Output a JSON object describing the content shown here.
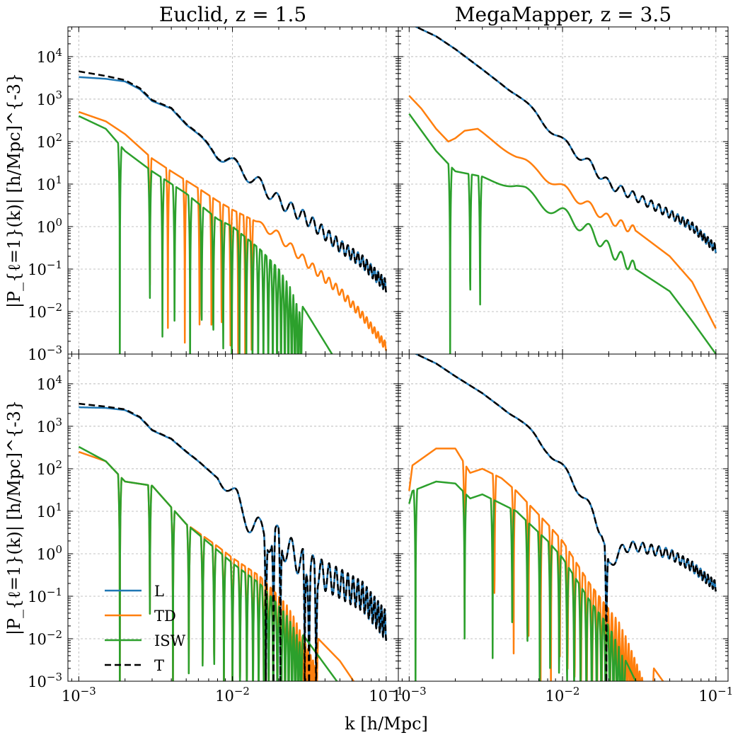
{
  "figure": {
    "xlabel": "k [h/Mpc]",
    "ylabel": "|P_{ℓ=1}(k)| [h/Mpc]^{-3}",
    "colors": {
      "L": "#1f77b4",
      "TD": "#ff7f0e",
      "ISW": "#2ca02c",
      "T": "#000000"
    },
    "legend": {
      "panel": "bottom-left",
      "location": "lower-left",
      "entries": [
        {
          "key": "L",
          "label": "L"
        },
        {
          "key": "TD",
          "label": "TD"
        },
        {
          "key": "ISW",
          "label": "ISW"
        },
        {
          "key": "T",
          "label": "T"
        }
      ]
    }
  },
  "column_titles": [
    "Euclid, z = 1.5",
    "MegaMapper, z = 3.5"
  ],
  "chart_data": [
    {
      "type": "line",
      "panel": "top-left",
      "title": "Euclid, z = 1.5",
      "xscale": "log",
      "yscale": "log",
      "xlim": [
        0.00085,
        0.12
      ],
      "ylim": [
        0.001,
        50000
      ],
      "xticks": [
        {
          "value": 0.001,
          "label": "10^-3"
        },
        {
          "value": 0.01,
          "label": "10^-2"
        },
        {
          "value": 0.1,
          "label": "10^-1"
        }
      ],
      "yticks": [
        {
          "value": 0.001,
          "label": "10^-3"
        },
        {
          "value": 0.01,
          "label": "10^-2"
        },
        {
          "value": 0.1,
          "label": "10^-1"
        },
        {
          "value": 1,
          "label": "10^0"
        },
        {
          "value": 10,
          "label": "10^1"
        },
        {
          "value": 100,
          "label": "10^2"
        },
        {
          "value": 1000,
          "label": "10^3"
        },
        {
          "value": 10000,
          "label": "10^4"
        }
      ],
      "series": [
        {
          "name": "L",
          "style": "solid",
          "signed": false,
          "k": [
            0.001,
            0.0015,
            0.002,
            0.0025,
            0.003,
            0.004,
            0.005,
            0.006,
            0.008,
            0.01,
            0.015,
            0.02,
            0.03,
            0.05,
            0.07,
            0.1
          ],
          "value": [
            3300,
            3000,
            2600,
            1700,
            900,
            600,
            250,
            150,
            50,
            30,
            10,
            4,
            1.6,
            0.35,
            0.15,
            0.04
          ],
          "wiggle": {
            "kstart": 0.006,
            "kend": 0.1,
            "period_k": 0.0046,
            "decades": 0.15
          }
        },
        {
          "name": "TD",
          "style": "solid",
          "signed": false,
          "k": [
            0.001,
            0.0015,
            0.002,
            0.003,
            0.004,
            0.006,
            0.008,
            0.01,
            0.015,
            0.02,
            0.03,
            0.05,
            0.07,
            0.1
          ],
          "value": [
            500,
            300,
            150,
            40,
            20,
            8,
            4,
            2.5,
            1.2,
            0.6,
            0.15,
            0.03,
            0.008,
            0.0015
          ],
          "zeros": [
            0.0029,
            0.0038,
            0.0049,
            0.0061,
            0.0073,
            0.0085,
            0.0097,
            0.0109,
            0.0121,
            0.0133
          ],
          "wiggle": {
            "kstart": 0.014,
            "kend": 0.1,
            "period_k": 0.0046,
            "decades": 0.1
          }
        },
        {
          "name": "ISW",
          "style": "solid",
          "signed": false,
          "k": [
            0.001,
            0.0015,
            0.002,
            0.003,
            0.005,
            0.008,
            0.01,
            0.015,
            0.02,
            0.03,
            0.05
          ],
          "value": [
            400,
            200,
            60,
            20,
            6,
            1.5,
            1,
            0.3,
            0.1,
            0.01,
            0.0005
          ],
          "zeros": [
            0.00185,
            0.0029,
            0.0035,
            0.0042,
            0.0053,
            0.0063,
            0.0075,
            0.0087,
            0.0099,
            0.0111,
            0.0123,
            0.0135,
            0.0147,
            0.0159,
            0.0171,
            0.0183,
            0.0195,
            0.0207,
            0.0219,
            0.0231,
            0.0243,
            0.0255,
            0.0267,
            0.0279
          ]
        },
        {
          "name": "T",
          "style": "dashed",
          "signed": false,
          "k": [
            0.001,
            0.0015,
            0.002,
            0.0025,
            0.003,
            0.004,
            0.005,
            0.006,
            0.008,
            0.01,
            0.015,
            0.02,
            0.03,
            0.05,
            0.07,
            0.1
          ],
          "value": [
            4500,
            3500,
            2800,
            1800,
            950,
            620,
            260,
            155,
            52,
            31,
            10,
            4,
            1.6,
            0.35,
            0.15,
            0.04
          ],
          "wiggle": {
            "kstart": 0.006,
            "kend": 0.1,
            "period_k": 0.0046,
            "decades": 0.15
          }
        }
      ]
    },
    {
      "type": "line",
      "panel": "top-right",
      "title": "MegaMapper, z = 3.5",
      "xscale": "log",
      "yscale": "log",
      "xlim": [
        0.00085,
        0.12
      ],
      "ylim": [
        0.001,
        50000
      ],
      "xticks": [
        {
          "value": 0.001,
          "label": "10^-3"
        },
        {
          "value": 0.01,
          "label": "10^-2"
        },
        {
          "value": 0.1,
          "label": "10^-1"
        }
      ],
      "yticks": [],
      "series": [
        {
          "name": "L",
          "style": "solid",
          "signed": false,
          "k": [
            0.001,
            0.0015,
            0.002,
            0.003,
            0.005,
            0.007,
            0.01,
            0.015,
            0.02,
            0.03,
            0.05,
            0.07,
            0.1
          ],
          "value": [
            60000,
            30000,
            15000,
            5000,
            1200,
            400,
            100,
            30,
            10,
            5,
            2,
            1,
            0.3
          ],
          "wiggle": {
            "kstart": 0.004,
            "kend": 0.1,
            "period_k": 0.0046,
            "decades": 0.1
          }
        },
        {
          "name": "TD",
          "style": "solid",
          "signed": false,
          "k": [
            0.001,
            0.0012,
            0.0015,
            0.0018,
            0.002,
            0.0023,
            0.0028,
            0.0035,
            0.005,
            0.007,
            0.01,
            0.015,
            0.02,
            0.03,
            0.05,
            0.07,
            0.1
          ],
          "value": [
            1200,
            600,
            200,
            100,
            120,
            180,
            200,
            110,
            40,
            20,
            8,
            3,
            1.5,
            0.8,
            0.2,
            0.05,
            0.004
          ],
          "wiggle": {
            "kstart": 0.003,
            "kend": 0.03,
            "period_k": 0.0046,
            "decades": 0.1
          }
        },
        {
          "name": "ISW",
          "style": "solid",
          "signed": false,
          "k": [
            0.001,
            0.0015,
            0.002,
            0.003,
            0.005,
            0.007,
            0.01,
            0.015,
            0.02,
            0.03,
            0.05,
            0.07,
            0.1
          ],
          "value": [
            450,
            60,
            20,
            15,
            8,
            4,
            2,
            0.8,
            0.3,
            0.1,
            0.03,
            0.006,
            0.001
          ],
          "zeros": [
            0.00185,
            0.0025,
            0.0029
          ],
          "wiggle": {
            "kstart": 0.003,
            "kend": 0.03,
            "period_k": 0.0046,
            "decades": 0.15
          }
        },
        {
          "name": "T",
          "style": "dashed",
          "signed": false,
          "k": [
            0.001,
            0.0015,
            0.002,
            0.003,
            0.005,
            0.007,
            0.01,
            0.015,
            0.02,
            0.03,
            0.05,
            0.07,
            0.1
          ],
          "value": [
            60000,
            30000,
            15000,
            5000,
            1200,
            400,
            100,
            30,
            10,
            5,
            2,
            1,
            0.3
          ],
          "wiggle": {
            "kstart": 0.004,
            "kend": 0.1,
            "period_k": 0.0046,
            "decades": 0.1
          }
        }
      ]
    },
    {
      "type": "line",
      "panel": "bottom-left",
      "title": "",
      "xscale": "log",
      "yscale": "log",
      "xlim": [
        0.00085,
        0.12
      ],
      "ylim": [
        0.001,
        50000
      ],
      "xticks": [
        {
          "value": 0.001,
          "label": "10^-3"
        },
        {
          "value": 0.01,
          "label": "10^-2"
        },
        {
          "value": 0.1,
          "label": "10^-1"
        }
      ],
      "yticks": [
        {
          "value": 0.001,
          "label": "10^-3"
        },
        {
          "value": 0.01,
          "label": "10^-2"
        },
        {
          "value": 0.1,
          "label": "10^-1"
        },
        {
          "value": 1,
          "label": "10^0"
        },
        {
          "value": 10,
          "label": "10^1"
        },
        {
          "value": 100,
          "label": "10^2"
        },
        {
          "value": 1000,
          "label": "10^3"
        },
        {
          "value": 10000,
          "label": "10^4"
        }
      ],
      "series": [
        {
          "name": "L",
          "style": "solid",
          "signed": false,
          "k": [
            0.001,
            0.0015,
            0.002,
            0.0025,
            0.003,
            0.004,
            0.005,
            0.006,
            0.008,
            0.01,
            0.012,
            0.015,
            0.02,
            0.03,
            0.05,
            0.07,
            0.1
          ],
          "value": [
            2800,
            2700,
            2400,
            1600,
            800,
            500,
            250,
            150,
            60,
            20,
            10,
            3,
            2,
            0.5,
            0.2,
            0.1,
            0.02
          ],
          "zeros": [
            0.0165,
            0.0185,
            0.0205,
            0.0295,
            0.0315,
            0.035
          ],
          "wiggle": {
            "kstart": 0.008,
            "kend": 0.1,
            "period_k": 0.0046,
            "decades": 0.35
          }
        },
        {
          "name": "TD",
          "style": "solid",
          "signed": false,
          "k": [
            0.001,
            0.0015,
            0.002,
            0.003,
            0.005,
            0.008,
            0.01,
            0.015,
            0.02,
            0.03,
            0.05,
            0.07
          ],
          "value": [
            250,
            150,
            50,
            40,
            5,
            1.5,
            0.8,
            0.3,
            0.1,
            0.02,
            0.003,
            0.0005
          ],
          "zeros": [
            0.00185,
            0.0029,
            0.0041,
            0.0052,
            0.0064,
            0.0076,
            0.0088,
            0.01,
            0.0112,
            0.0124,
            0.0136,
            0.0148,
            0.016,
            0.0172,
            0.0184,
            0.0196,
            0.0208,
            0.022,
            0.0232,
            0.0244,
            0.0256,
            0.0268,
            0.028,
            0.0292,
            0.0304,
            0.0316,
            0.0328,
            0.034,
            0.0352
          ]
        },
        {
          "name": "ISW",
          "style": "solid",
          "signed": false,
          "k": [
            0.001,
            0.0015,
            0.002,
            0.003,
            0.005,
            0.008,
            0.01,
            0.015,
            0.02,
            0.03,
            0.05
          ],
          "value": [
            330,
            150,
            50,
            40,
            5,
            1.2,
            0.6,
            0.2,
            0.06,
            0.01,
            0.0008
          ],
          "zeros": [
            0.00185,
            0.0029,
            0.0041,
            0.0052,
            0.0064,
            0.0076,
            0.0088,
            0.01,
            0.0112,
            0.0124,
            0.0136,
            0.0148,
            0.016,
            0.0172,
            0.0184,
            0.0196,
            0.0208,
            0.022,
            0.0232,
            0.0244,
            0.0256,
            0.0268,
            0.028
          ]
        },
        {
          "name": "T",
          "style": "dashed",
          "signed": false,
          "k": [
            0.001,
            0.0015,
            0.002,
            0.0025,
            0.003,
            0.004,
            0.005,
            0.006,
            0.008,
            0.01,
            0.012,
            0.015,
            0.02,
            0.03,
            0.05,
            0.07,
            0.1
          ],
          "value": [
            3400,
            2900,
            2500,
            1650,
            820,
            510,
            255,
            152,
            60,
            20,
            10,
            3,
            2,
            0.5,
            0.2,
            0.1,
            0.02
          ],
          "zeros": [
            0.0165,
            0.0185,
            0.0205,
            0.0295,
            0.0315,
            0.035
          ],
          "wiggle": {
            "kstart": 0.008,
            "kend": 0.1,
            "period_k": 0.0046,
            "decades": 0.35
          }
        }
      ]
    },
    {
      "type": "line",
      "panel": "bottom-right",
      "title": "",
      "xscale": "log",
      "yscale": "log",
      "xlim": [
        0.00085,
        0.12
      ],
      "ylim": [
        0.001,
        50000
      ],
      "xticks": [
        {
          "value": 0.001,
          "label": "10^-3"
        },
        {
          "value": 0.01,
          "label": "10^-2"
        },
        {
          "value": 0.1,
          "label": "10^-1"
        }
      ],
      "yticks": [],
      "series": [
        {
          "name": "L",
          "style": "solid",
          "signed": false,
          "k": [
            0.001,
            0.0015,
            0.002,
            0.003,
            0.005,
            0.008,
            0.01,
            0.013,
            0.016,
            0.018,
            0.02,
            0.025,
            0.03,
            0.04,
            0.05,
            0.07,
            0.1
          ],
          "value": [
            60000,
            30000,
            15000,
            6000,
            1500,
            300,
            100,
            30,
            8,
            3,
            0.5,
            1.4,
            1.5,
            1.2,
            1,
            0.5,
            0.17
          ],
          "zeros": [
            0.0193
          ],
          "wiggle": {
            "kstart": 0.004,
            "kend": 0.1,
            "period_k": 0.0046,
            "decades": 0.12
          }
        },
        {
          "name": "TD",
          "style": "solid",
          "signed": false,
          "k": [
            0.001,
            0.00105,
            0.0015,
            0.002,
            0.0025,
            0.003,
            0.004,
            0.005,
            0.008,
            0.01,
            0.015,
            0.02,
            0.03,
            0.05
          ],
          "value": [
            30,
            120,
            300,
            300,
            80,
            100,
            60,
            30,
            5,
            2,
            0.2,
            0.05,
            0.008,
            0.0006
          ],
          "zeros": [
            0.0023,
            0.0036,
            0.0048,
            0.006,
            0.0072,
            0.0084,
            0.0096,
            0.0108,
            0.012,
            0.0132,
            0.0144,
            0.0156,
            0.0168,
            0.018,
            0.0192,
            0.0204,
            0.0216,
            0.0228,
            0.024,
            0.0252,
            0.0264,
            0.0276,
            0.0288,
            0.03,
            0.0312,
            0.0324,
            0.0336,
            0.0348,
            0.036,
            0.0372,
            0.0384
          ]
        },
        {
          "name": "ISW",
          "style": "solid",
          "signed": false,
          "k": [
            0.001,
            0.00105,
            0.0015,
            0.002,
            0.0025,
            0.003,
            0.005,
            0.008,
            0.01,
            0.015,
            0.02,
            0.03
          ],
          "value": [
            15,
            30,
            50,
            45,
            20,
            25,
            10,
            2,
            0.8,
            0.08,
            0.02,
            0.001
          ],
          "zeros": [
            0.0011,
            0.0023,
            0.0035,
            0.0047,
            0.0059,
            0.0071,
            0.0083,
            0.0095,
            0.0107,
            0.0119,
            0.0131,
            0.0143,
            0.0155,
            0.0167,
            0.0179,
            0.0191,
            0.0203,
            0.0215,
            0.0227,
            0.0239,
            0.0251
          ]
        },
        {
          "name": "T",
          "style": "dashed",
          "signed": false,
          "k": [
            0.001,
            0.0015,
            0.002,
            0.003,
            0.005,
            0.008,
            0.01,
            0.013,
            0.016,
            0.018,
            0.02,
            0.025,
            0.03,
            0.04,
            0.05,
            0.07,
            0.1
          ],
          "value": [
            60000,
            30000,
            15000,
            6000,
            1500,
            300,
            100,
            30,
            8,
            3,
            0.5,
            1.4,
            1.5,
            1.2,
            1,
            0.5,
            0.17
          ],
          "zeros": [
            0.0193
          ],
          "wiggle": {
            "kstart": 0.004,
            "kend": 0.1,
            "period_k": 0.0046,
            "decades": 0.12
          }
        }
      ]
    }
  ]
}
